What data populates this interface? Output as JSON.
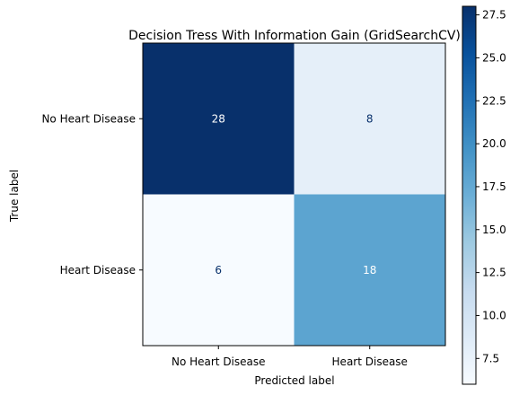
{
  "chart_data": {
    "type": "heatmap",
    "title": "Decision Tress With Information Gain (GridSearchCV)",
    "xlabel": "Predicted label",
    "ylabel": "True label",
    "x_categories": [
      "No Heart Disease",
      "Heart Disease"
    ],
    "y_categories": [
      "No Heart Disease",
      "Heart Disease"
    ],
    "values": [
      [
        28,
        8
      ],
      [
        6,
        18
      ]
    ],
    "colormap": "Blues",
    "colorbar": {
      "min": 6,
      "max": 28,
      "ticks": [
        "7.5",
        "10.0",
        "12.5",
        "15.0",
        "17.5",
        "20.0",
        "22.5",
        "25.0",
        "27.5"
      ]
    },
    "grid": false
  },
  "colors": {
    "blues_low": "#f7fbff",
    "blues_high": "#08306b",
    "text_dark_cell": "#ffffff",
    "text_light_cell": "#08306b"
  }
}
